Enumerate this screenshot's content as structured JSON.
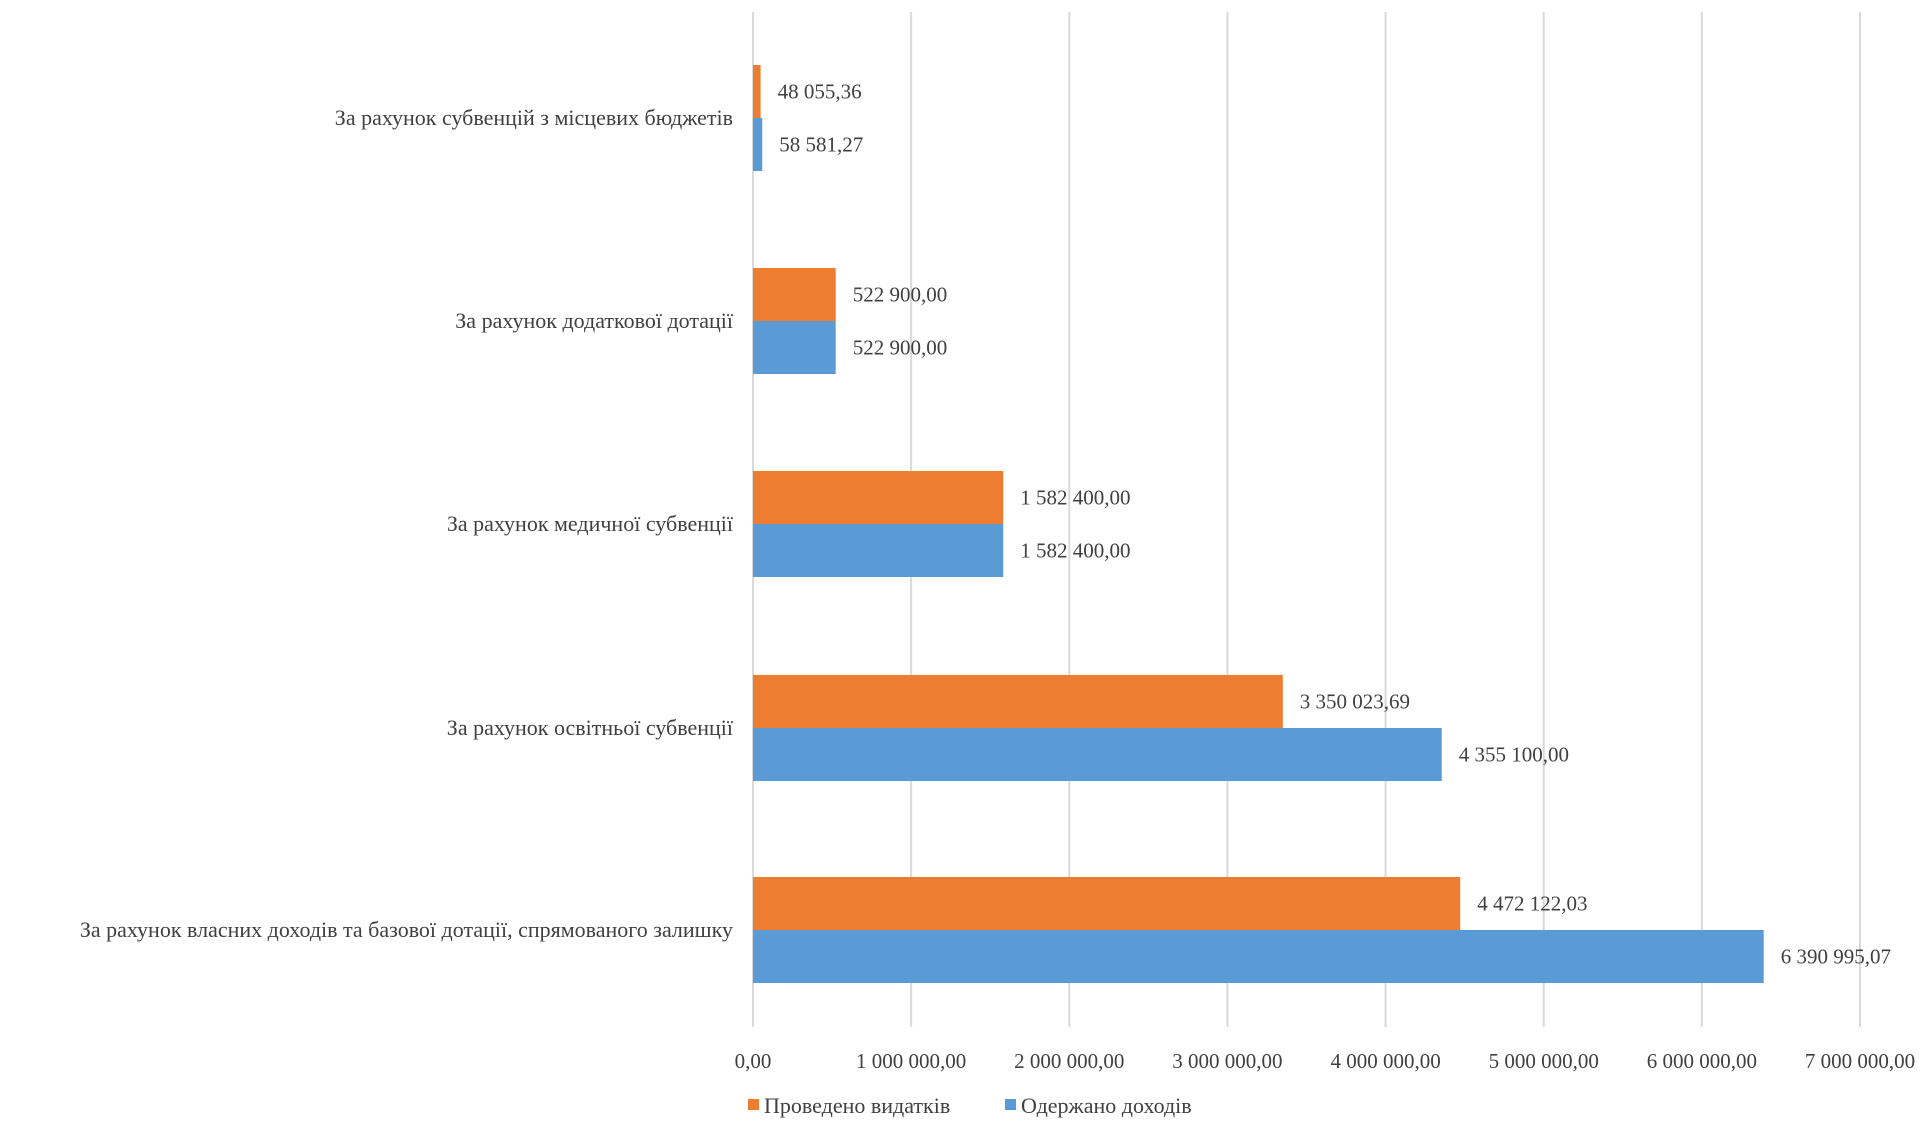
{
  "chart_data": {
    "type": "bar",
    "orientation": "horizontal",
    "categories": [
      "За рахунок субвенцій з місцевих бюджетів",
      "За рахунок додаткової дотації",
      "За рахунок медичної субвенції",
      "За рахунок освітньої субвенції",
      "За рахунок власних доходів та базової дотації, спрямованого залишку"
    ],
    "series": [
      {
        "name": "Проведено видатків",
        "color": "#ed7d31",
        "values": [
          48055.36,
          522900.0,
          1582400.0,
          3350023.69,
          4472122.03
        ],
        "labels": [
          "48 055,36",
          "522 900,00",
          "1 582 400,00",
          "3 350 023,69",
          "4 472 122,03"
        ]
      },
      {
        "name": "Одержано доходів",
        "color": "#5b9bd5",
        "values": [
          58581.27,
          522900.0,
          1582400.0,
          4355100.0,
          6390995.07
        ],
        "labels": [
          "58 581,27",
          "522 900,00",
          "1 582 400,00",
          "4 355 100,00",
          "6 390 995,07"
        ]
      }
    ],
    "xlim": [
      0,
      7000000
    ],
    "xticks": [
      0,
      1000000,
      2000000,
      3000000,
      4000000,
      5000000,
      6000000,
      7000000
    ],
    "xtick_labels": [
      "0,00",
      "1 000 000,00",
      "2 000 000,00",
      "3 000 000,00",
      "4 000 000,00",
      "5 000 000,00",
      "6 000 000,00",
      "7 000 000,00"
    ],
    "grid": true,
    "legend_position": "bottom"
  }
}
